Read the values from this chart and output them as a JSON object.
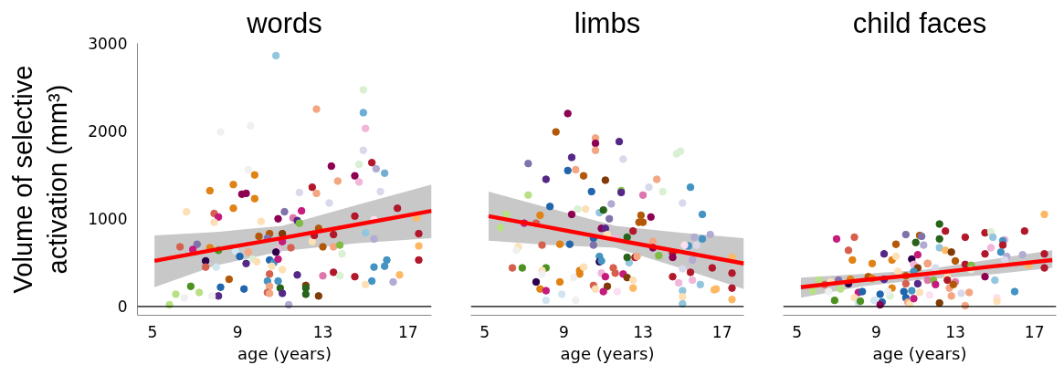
{
  "chart_data": [
    {
      "type": "scatter",
      "title": "words",
      "xlabel": "age (years)",
      "ylabel": "Volume of selective\nactivation (mm³)",
      "xlim": [
        4.3,
        18.1
      ],
      "ylim": [
        -100,
        3000
      ],
      "xticks": [
        5,
        9,
        13,
        17
      ],
      "yticks": [
        0,
        1000,
        2000,
        3000
      ],
      "ref_lines": [
        {
          "axis": "y",
          "value": 0,
          "color": "#000000"
        }
      ],
      "series": [
        {
          "marker": "circle",
          "x": [
            10.8,
            14.9,
            12.7,
            14.9,
            15.0,
            8.2,
            9.6,
            14.9,
            13.4,
            15.3,
            15.5,
            15.9,
            14.7,
            14.5,
            14.7,
            13.7,
            9.5,
            9.8,
            7.7,
            8.8,
            9.2,
            9.4,
            9.8,
            12.5,
            12.7,
            11.9,
            15.7,
            13.3,
            6.6,
            7.9,
            8.1,
            7.9,
            8.8,
            10.1,
            10.9,
            11.2,
            12.0,
            11.6,
            11.8,
            11.9,
            14.5,
            16.5,
            15.4,
            17.4,
            17.5,
            17.5,
            17.5,
            6.3,
            7.1,
            6.9,
            7.7,
            8.1,
            7.5,
            7.5,
            8.0,
            10.0,
            10.5,
            11.1,
            10.4,
            11.1,
            10.9,
            10.8,
            9.5,
            8.9,
            9.1,
            9.4,
            9.7,
            9.9,
            10.5,
            10.7,
            10.9,
            11.5,
            12.5,
            12.6,
            12.8,
            13.0,
            13.5,
            13.5,
            13.8,
            13.9,
            15.0,
            15.4,
            16.0,
            15.9,
            15.4,
            15.3,
            16.3,
            16.6,
            15.0,
            14.5,
            13.5,
            13.8,
            13.0,
            11.8,
            11.1,
            10.6,
            10.5,
            10.4,
            10.9,
            10.5,
            10.4,
            10.5,
            11.0,
            11.1,
            12.2,
            12.2,
            12.2,
            12.8,
            11.4,
            9.3,
            8.6,
            8.2,
            8.1,
            7.8,
            6.8,
            7.2,
            6.1,
            6.5,
            5.8
          ],
          "values": [
            2860,
            2470,
            2250,
            2210,
            2030,
            1990,
            2060,
            1780,
            1600,
            1640,
            1570,
            1520,
            1620,
            1490,
            1420,
            1430,
            1560,
            1500,
            1320,
            1390,
            1280,
            1290,
            1230,
            1360,
            1290,
            1300,
            1310,
            1180,
            1080,
            1060,
            1020,
            960,
            1120,
            970,
            1000,
            1080,
            1090,
            1010,
            980,
            950,
            1030,
            1120,
            990,
            1010,
            830,
            690,
            530,
            680,
            710,
            650,
            670,
            640,
            520,
            450,
            450,
            800,
            830,
            830,
            780,
            740,
            650,
            620,
            620,
            630,
            570,
            490,
            540,
            510,
            530,
            500,
            540,
            670,
            740,
            810,
            890,
            680,
            820,
            680,
            700,
            600,
            840,
            770,
            530,
            460,
            450,
            290,
            280,
            360,
            250,
            340,
            390,
            350,
            350,
            360,
            420,
            460,
            370,
            290,
            290,
            230,
            160,
            150,
            210,
            150,
            240,
            210,
            140,
            120,
            20,
            200,
            310,
            220,
            120,
            120,
            230,
            160,
            140,
            100,
            20
          ],
          "colors": [
            "#92c5de",
            "#d9f0d3",
            "#f4a582",
            "#6baed6",
            "#f1b6da",
            "#f0f0f0",
            "#f0f0f0",
            "#d8daeb",
            "#8e0152",
            "#b2182b",
            "#b2abd2",
            "#74add1",
            "#d9f0d3",
            "#8e0152",
            "#f1b6da",
            "#f4a582",
            "#f0f0f0",
            "#e08214",
            "#e08214",
            "#e08214",
            "#8e0152",
            "#8e0152",
            "#e08214",
            "#b2182b",
            "#f4a582",
            "#d8daeb",
            "#d8daeb",
            "#d8daeb",
            "#fee0b6",
            "#d6604d",
            "#c51b7d",
            "#fee0b6",
            "#e08214",
            "#fee0b6",
            "#8e0152",
            "#8073ac",
            "#c51b7d",
            "#de77ae",
            "#542788",
            "#7fbc41",
            "#b2182b",
            "#b2182b",
            "#fde0ef",
            "#fdb863",
            "#b2182b",
            "#fdb863",
            "#b2182b",
            "#d6604d",
            "#8073ac",
            "#c51b7d",
            "#e08214",
            "#4d9221",
            "#2d004b",
            "#d6604d",
            "#d1e5f0",
            "#b35806",
            "#b35806",
            "#7f3b08",
            "#8073ac",
            "#c51b7d",
            "#f1b6da",
            "#2d004b",
            "#f4a582",
            "#d1e5f0",
            "#2166ac",
            "#542788",
            "#d9f0d3",
            "#fee0b6",
            "#2166ac",
            "#4393c3",
            "#c51b7d",
            "#d6604d",
            "#fee0b6",
            "#b2182b",
            "#b35806",
            "#b35806",
            "#b2182b",
            "#f4a582",
            "#7fbc41",
            "#d9f0d3",
            "#92c5de",
            "#b2abd2",
            "#4393c3",
            "#4393c3",
            "#4393c3",
            "#4393c3",
            "#b2abd2",
            "#fdb863",
            "#fee0b6",
            "#b2182b",
            "#b2182b",
            "#d9f0d3",
            "#de77ae",
            "#542788",
            "#fee0b6",
            "#fee0b6",
            "#d6604d",
            "#4393c3",
            "#4393c3",
            "#f4a582",
            "#d6604d",
            "#f4a582",
            "#276419",
            "#542788",
            "#7f3b08",
            "#276419",
            "#276419",
            "#7f3b08",
            "#b2abd2",
            "#2166ac",
            "#b35806",
            "#2166ac",
            "#542788",
            "#f0f0f0",
            "#4d9221",
            "#b8e186",
            "#b8e186",
            "#f0f0f0",
            "#b8e186"
          ]
        },
        {
          "type": "line",
          "color": "#ff0000",
          "x": [
            5.1,
            8.0,
            11.1,
            14.5,
            18.1
          ],
          "values": [
            520,
            650,
            780,
            930,
            1090
          ],
          "lower": [
            220,
            470,
            630,
            720,
            780
          ],
          "upper": [
            810,
            850,
            920,
            1150,
            1390
          ]
        }
      ]
    },
    {
      "type": "scatter",
      "title": "limbs",
      "xlabel": "age (years)",
      "xlim": [
        4.3,
        18.1
      ],
      "ylim": [
        -100,
        3000
      ],
      "xticks": [
        5,
        9,
        13,
        17
      ],
      "yticks": [
        0,
        1000,
        2000,
        3000
      ],
      "tick_labels": "x",
      "ref_lines": [
        {
          "axis": "y",
          "value": 0,
          "color": "#000000"
        }
      ],
      "series": [
        {
          "marker": "circle",
          "x": [
            9.2,
            8.6,
            10.6,
            10.6,
            10.6,
            11.8,
            12.0,
            7.2,
            9.4,
            9.2,
            9.6,
            8.1,
            10.0,
            11.1,
            14.7,
            14.9,
            13.7,
            15.4,
            13.3,
            14.0,
            13.0,
            11.9,
            11.9,
            7.2,
            10.4,
            11.4,
            15.0,
            8.3,
            9.7,
            10.1,
            9.4,
            10.8,
            11.0,
            11.3,
            12.9,
            12.8,
            13.0,
            13.4,
            16.0,
            6.1,
            5.8,
            7.0,
            7.6,
            7.8,
            10.9,
            11.1,
            10.5,
            11.2,
            11.6,
            12.2,
            12.5,
            16.4,
            15.6,
            16.0,
            15.7,
            15.3,
            15.1,
            13.5,
            13.5,
            14.5,
            14.5,
            13.8,
            17.5,
            6.7,
            6.6,
            7.9,
            8.8,
            9.3,
            10.5,
            10.8,
            10.8,
            10.9,
            12.3,
            12.2,
            12.6,
            12.7,
            15.5,
            15.0,
            15.4,
            16.5,
            17.5,
            6.4,
            6.9,
            8.1,
            7.9,
            7.9,
            9.8,
            9.8,
            10.0,
            9.5,
            11.5,
            11.6,
            10.9,
            11.1,
            12.0,
            12.2,
            12.5,
            12.5,
            7.6,
            8.8,
            7.8,
            8.1,
            8.1,
            8.9,
            9.6,
            10.5,
            10.6,
            11.2,
            11.0,
            11.7,
            14.5,
            14.8,
            15.5,
            15.9,
            16.6,
            16.7,
            17.5,
            15.0,
            15.0,
            15.0,
            17.5
          ],
          "values": [
            2200,
            1990,
            1920,
            1860,
            1780,
            1880,
            1680,
            1630,
            1700,
            1550,
            1560,
            1450,
            1490,
            1440,
            1740,
            1770,
            1450,
            1360,
            1360,
            1310,
            1270,
            1320,
            1300,
            1270,
            1310,
            1170,
            1180,
            1140,
            1110,
            1110,
            1050,
            1070,
            1100,
            1000,
            1040,
            960,
            960,
            1020,
            1050,
            1050,
            900,
            950,
            950,
            1040,
            890,
            890,
            780,
            820,
            780,
            790,
            860,
            820,
            790,
            770,
            700,
            690,
            700,
            740,
            670,
            610,
            560,
            580,
            560,
            680,
            640,
            700,
            710,
            710,
            700,
            570,
            510,
            520,
            500,
            560,
            560,
            570,
            530,
            430,
            390,
            440,
            380,
            440,
            440,
            440,
            410,
            370,
            410,
            370,
            450,
            330,
            440,
            380,
            380,
            340,
            370,
            330,
            300,
            210,
            280,
            280,
            200,
            180,
            70,
            140,
            70,
            240,
            200,
            230,
            170,
            170,
            340,
            270,
            300,
            250,
            190,
            200,
            210,
            180,
            110,
            30,
            80
          ],
          "colors": [
            "#8e0152",
            "#b35806",
            "#f4a582",
            "#8e0152",
            "#f4a582",
            "#542788",
            "#d8daeb",
            "#8073ac",
            "#542788",
            "#2166ac",
            "#f4a582",
            "#542788",
            "#b35806",
            "#7f3b08",
            "#d9f0d3",
            "#d9f0d3",
            "#f4a582",
            "#4393c3",
            "#d8daeb",
            "#d9f0d3",
            "#de77ae",
            "#7fbc41",
            "#542788",
            "#b8e186",
            "#2166ac",
            "#b2abd2",
            "#d8daeb",
            "#2166ac",
            "#d9f0d3",
            "#fee0b6",
            "#8e0152",
            "#92c5de",
            "#276419",
            "#8073ac",
            "#b35806",
            "#b35806",
            "#b35806",
            "#8e0152",
            "#4393c3",
            "#b8e186",
            "#b8e186",
            "#c51b7d",
            "#d6604d",
            "#e08214",
            "#8e0152",
            "#542788",
            "#2166ac",
            "#fee0b6",
            "#f1b6da",
            "#276419",
            "#b2182b",
            "#b2abd2",
            "#b2abd2",
            "#4393c3",
            "#d8daeb",
            "#4393c3",
            "#fde0ef",
            "#f4a582",
            "#8e0152",
            "#b2182b",
            "#8e0152",
            "#7fbc41",
            "#fdb863",
            "#fee0b6",
            "#f0f0f0",
            "#d6604d",
            "#e08214",
            "#2166ac",
            "#8073ac",
            "#4393c3",
            "#2d004b",
            "#4393c3",
            "#92c5de",
            "#276419",
            "#b2182b",
            "#f4a582",
            "#b2abd2",
            "#d8daeb",
            "#b2182b",
            "#b2182b",
            "#b2182b",
            "#d6604d",
            "#4d9221",
            "#4d9221",
            "#fee0b6",
            "#f0f0f0",
            "#e08214",
            "#e08214",
            "#fee0b6",
            "#f0f0f0",
            "#d6604d",
            "#d6604d",
            "#f1b6da",
            "#c51b7d",
            "#c51b7d",
            "#7f3b08",
            "#fee0b6",
            "#fdb863",
            "#2d004b",
            "#e08214",
            "#e08214",
            "#c51b7d",
            "#d1e5f0",
            "#d1e5f0",
            "#f0f0f0",
            "#d6604d",
            "#fee0b6",
            "#7f3b08",
            "#c51b7d",
            "#fde0ef",
            "#b2182b",
            "#f1b6da",
            "#f1b6da",
            "#92c5de",
            "#fdb863",
            "#fdb863",
            "#b2182b",
            "#92c5de",
            "#fee0b6",
            "#92c5de",
            "#fdb863"
          ]
        },
        {
          "type": "line",
          "color": "#ff0000",
          "x": [
            5.2,
            8.3,
            11.6,
            15.0,
            18.1
          ],
          "values": [
            1030,
            900,
            760,
            620,
            490
          ],
          "lower": [
            750,
            700,
            670,
            430,
            200
          ],
          "upper": [
            1310,
            1120,
            920,
            840,
            780
          ]
        }
      ]
    },
    {
      "type": "scatter",
      "title": "child faces",
      "xlabel": "age (years)",
      "xlim": [
        4.3,
        18.1
      ],
      "ylim": [
        -100,
        3000
      ],
      "xticks": [
        5,
        9,
        13,
        17
      ],
      "yticks": [
        0,
        1000,
        2000,
        3000
      ],
      "tick_labels": "x",
      "ref_lines": [
        {
          "axis": "y",
          "value": 0,
          "color": "#000000"
        }
      ],
      "series": [
        {
          "marker": "circle",
          "x": [
            17.5,
            12.2,
            12.5,
            16.5,
            14.5,
            13.5,
            14.8,
            14.9,
            15.5,
            15.4,
            15.4,
            15.3,
            14.5,
            14.8,
            15.6,
            15.5,
            16.4,
            16.7,
            17.5,
            17.5,
            7.0,
            7.9,
            7.6,
            7.8,
            8.8,
            9.4,
            9.8,
            10.0,
            10.0,
            10.5,
            11.0,
            11.2,
            11.3,
            11.4,
            12.2,
            12.2,
            12.5,
            12.8,
            13.0,
            10.8,
            11.1,
            10.9,
            11.1,
            11.6,
            11.6,
            12.0,
            10.1,
            10.9,
            10.5,
            9.4,
            8.6,
            8.8,
            7.7,
            7.1,
            7.6,
            6.1,
            6.7,
            6.4,
            5.8,
            6.6,
            7.2,
            6.9,
            8.1,
            8.3,
            7.9,
            8.1,
            8.2,
            8.9,
            9.2,
            9.3,
            9.2,
            9.7,
            9.8,
            9.6,
            10.5,
            10.4,
            10.5,
            10.6,
            10.7,
            10.8,
            11.1,
            11.2,
            10.9,
            11.6,
            11.9,
            12.0,
            11.7,
            12.2,
            12.6,
            12.6,
            13.0,
            12.7,
            12.9,
            12.8,
            13.3,
            13.7,
            13.5,
            13.5,
            13.8,
            13.8,
            14.5,
            15.0,
            15.1,
            15.1,
            16.0
          ],
          "values": [
            1050,
            940,
            860,
            860,
            840,
            790,
            850,
            790,
            760,
            750,
            700,
            620,
            600,
            670,
            570,
            530,
            590,
            470,
            600,
            440,
            770,
            790,
            640,
            530,
            490,
            600,
            530,
            570,
            710,
            820,
            730,
            810,
            800,
            700,
            770,
            670,
            640,
            620,
            520,
            540,
            590,
            480,
            440,
            490,
            490,
            440,
            400,
            400,
            350,
            310,
            340,
            320,
            310,
            300,
            260,
            300,
            280,
            250,
            180,
            170,
            200,
            70,
            160,
            170,
            100,
            40,
            60,
            70,
            140,
            50,
            20,
            120,
            210,
            170,
            260,
            170,
            100,
            50,
            30,
            180,
            260,
            160,
            90,
            300,
            300,
            250,
            130,
            40,
            340,
            300,
            280,
            210,
            250,
            120,
            150,
            160,
            10,
            480,
            470,
            420,
            340,
            300,
            100,
            60,
            170
          ],
          "colors": [
            "#fdb863",
            "#276419",
            "#b2182b",
            "#b2182b",
            "#b2182b",
            "#b2182b",
            "#d9f0d3",
            "#92c5de",
            "#f1b6da",
            "#4393c3",
            "#b2182b",
            "#4393c3",
            "#b2182b",
            "#f1b6da",
            "#b2abd2",
            "#d8daeb",
            "#b2abd2",
            "#fdb863",
            "#b2182b",
            "#b2182b",
            "#c51b7d",
            "#d6604d",
            "#d6604d",
            "#e08214",
            "#e08214",
            "#542788",
            "#e08214",
            "#fee0b6",
            "#b35806",
            "#8073ac",
            "#276419",
            "#b35806",
            "#8073ac",
            "#b2abd2",
            "#276419",
            "#92c5de",
            "#fdb863",
            "#7f3b08",
            "#b35806",
            "#2d004b",
            "#c51b7d",
            "#f1b6da",
            "#7f3b08",
            "#d6604d",
            "#f4a582",
            "#d8daeb",
            "#fee0b6",
            "#4393c3",
            "#b35806",
            "#542788",
            "#b35806",
            "#e08214",
            "#e08214",
            "#8073ac",
            "#2d004b",
            "#b8e186",
            "#fee0b6",
            "#d6604d",
            "#b8e186",
            "#f0f0f0",
            "#b8e186",
            "#4d9221",
            "#c51b7d",
            "#2166ac",
            "#fee0b6",
            "#d1e5f0",
            "#4d9221",
            "#d1e5f0",
            "#2166ac",
            "#2166ac",
            "#8e0152",
            "#d9f0d3",
            "#e08214",
            "#f0f0f0",
            "#d6604d",
            "#2166ac",
            "#2166ac",
            "#f4a582",
            "#fee0b6",
            "#4393c3",
            "#542788",
            "#fee0b6",
            "#c51b7d",
            "#de77ae",
            "#7fbc41",
            "#c51b7d",
            "#fde0ef",
            "#7f3b08",
            "#fee0b6",
            "#b2182b",
            "#de77ae",
            "#f4a582",
            "#b35806",
            "#f4a582",
            "#d8daeb",
            "#f4a582",
            "#f4a582",
            "#b2182b",
            "#7fbc41",
            "#d9f0d3",
            "#8e0152",
            "#92c5de",
            "#fde0ef",
            "#fee0b6",
            "#4393c3"
          ]
        },
        {
          "type": "line",
          "color": "#ff0000",
          "x": [
            5.2,
            8.3,
            11.5,
            14.6,
            17.9
          ],
          "values": [
            220,
            300,
            370,
            450,
            530
          ],
          "lower": [
            100,
            230,
            310,
            360,
            440
          ],
          "upper": [
            330,
            370,
            420,
            530,
            640
          ]
        }
      ]
    }
  ]
}
